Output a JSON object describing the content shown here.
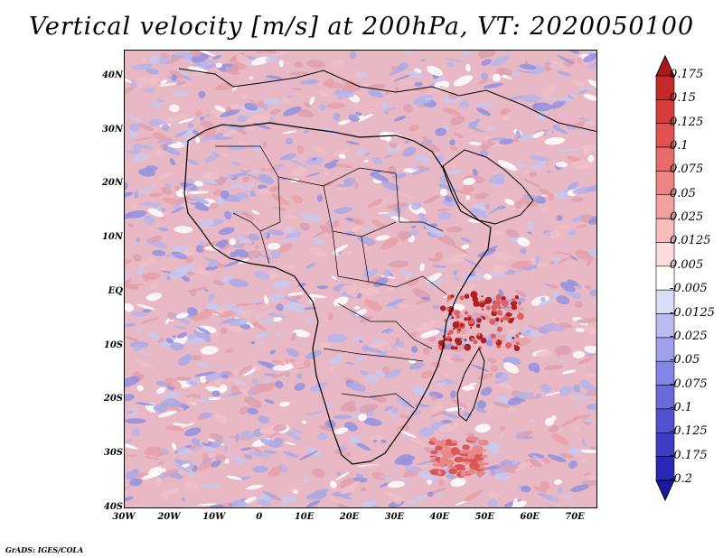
{
  "title": "Vertical velocity [m/s] at 200hPa, VT: 2020050100",
  "footer": "GrADS: IGES/COLA",
  "map": {
    "lat_labels": [
      "40N",
      "30N",
      "20N",
      "10N",
      "EQ",
      "10S",
      "20S",
      "30S",
      "40S"
    ],
    "lat_values": [
      40,
      30,
      20,
      10,
      0,
      -10,
      -20,
      -30,
      -40
    ],
    "lon_labels": [
      "30W",
      "20W",
      "10W",
      "0",
      "10E",
      "20E",
      "30E",
      "40E",
      "50E",
      "60E",
      "70E"
    ],
    "lon_values": [
      -30,
      -20,
      -10,
      0,
      10,
      20,
      30,
      40,
      50,
      60,
      70
    ],
    "lon_range": [
      -30,
      75
    ],
    "lat_range": [
      -40,
      45
    ]
  },
  "colorbar": {
    "levels": [
      "0.175",
      "0.15",
      "0.125",
      "0.1",
      "0.075",
      "0.05",
      "0.025",
      "0.0125",
      "0.005",
      "-0.005",
      "-0.0125",
      "-0.025",
      "-0.05",
      "-0.075",
      "-0.1",
      "-0.125",
      "-0.175",
      "-0.2"
    ],
    "colors": [
      "#b01818",
      "#c42828",
      "#d43c3c",
      "#e05252",
      "#e86a6a",
      "#ee8484",
      "#f4a0a0",
      "#f8bcbc",
      "#fcdcdc",
      "#ffffff",
      "#dcdcf8",
      "#bcbcf2",
      "#a0a0ec",
      "#8484e4",
      "#6a6adc",
      "#5252d0",
      "#3c3cc4",
      "#2828b4",
      "#1818a0"
    ]
  }
}
